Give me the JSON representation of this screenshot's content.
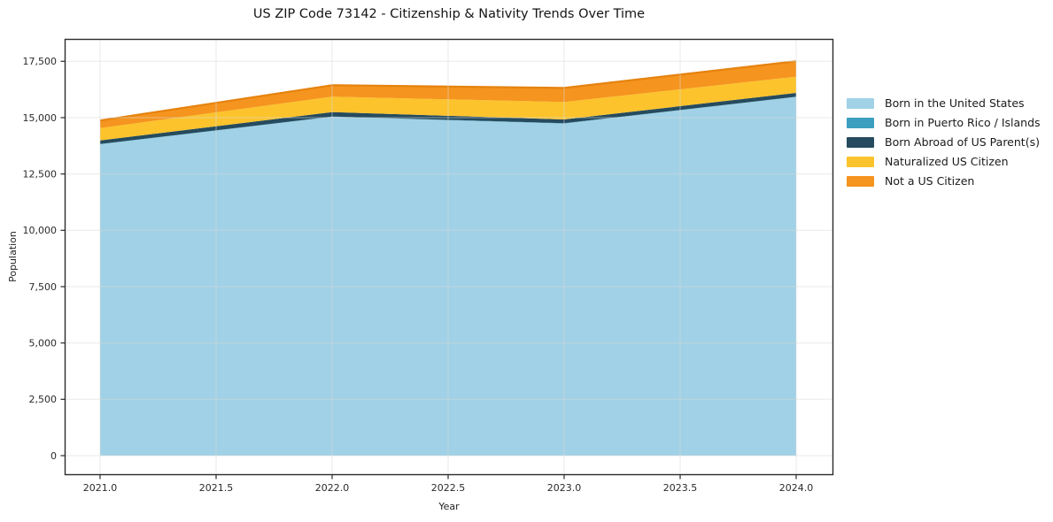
{
  "chart_data": {
    "type": "area",
    "stacked": true,
    "title": "US ZIP Code 73142 - Citizenship & Nativity Trends Over Time",
    "xlabel": "Year",
    "ylabel": "Population",
    "grid": true,
    "legend_position": "right",
    "x": [
      2021,
      2022,
      2023,
      2024
    ],
    "series": [
      {
        "name": "Born in the United States",
        "color": "#a1d1e6",
        "values": [
          13820,
          15040,
          14740,
          15920
        ]
      },
      {
        "name": "Born in Puerto Rico / Islands",
        "color": "#3d9fc0",
        "values": [
          10,
          10,
          10,
          10
        ]
      },
      {
        "name": "Born Abroad of US Parent(s)",
        "color": "#264b5e",
        "values": [
          160,
          195,
          170,
          170
        ]
      },
      {
        "name": "Naturalized US Citizen",
        "color": "#fcc32c",
        "values": [
          545,
          690,
          775,
          715
        ]
      },
      {
        "name": "Not a US Citizen",
        "color": "#f5941e",
        "values": [
          340,
          505,
          625,
          690
        ]
      }
    ],
    "totals": [
      14875,
      16440,
      16320,
      17505
    ],
    "top_edge_color": "#e5830f",
    "xlim": [
      2020.85,
      2024.16
    ],
    "ylim": [
      -900,
      18500
    ],
    "xticks": {
      "values": [
        2021.0,
        2021.5,
        2022.0,
        2022.5,
        2023.0,
        2023.5,
        2024.0
      ],
      "labels": [
        "2021.0",
        "2021.5",
        "2022.0",
        "2022.5",
        "2023.0",
        "2023.5",
        "2024.0"
      ]
    },
    "yticks": {
      "values": [
        0,
        2500,
        5000,
        7500,
        10000,
        12500,
        15000,
        17500
      ],
      "labels": [
        "0",
        "2,500",
        "5,000",
        "7,500",
        "10,000",
        "12,500",
        "15,000",
        "17,500"
      ]
    }
  },
  "colors": {
    "spine": "#2b2b2b",
    "gridline": "#d9d9d9",
    "tick_text": "#2b2b2b",
    "background": "#ffffff"
  }
}
